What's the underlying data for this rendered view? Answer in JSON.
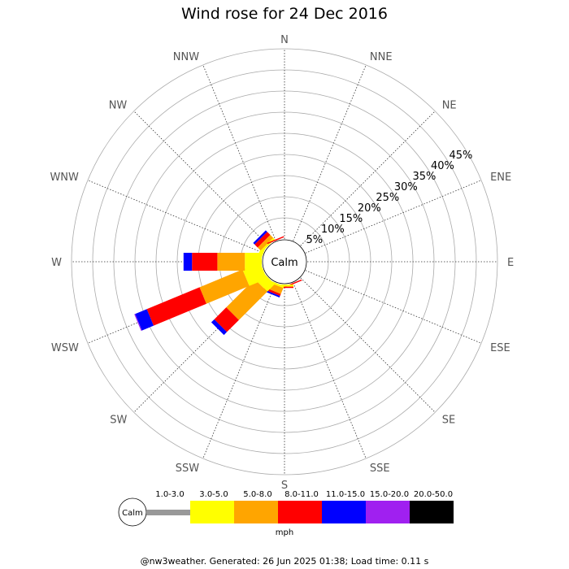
{
  "title": "Wind rose for 24 Dec 2016",
  "footer": "@nw3weather. Generated: 26 Jun 2025 01:38; Load time: 0.11 s",
  "calm_label": "Calm",
  "unit": "mph",
  "colors": {
    "calm_line": "#999999",
    "grid_ring": "#aaaaaa",
    "spoke": "#333333",
    "axis_text": "#555555"
  },
  "chart_data": {
    "type": "polar-bar",
    "title": "Wind rose for 24 Dec 2016",
    "directions": [
      "N",
      "NNE",
      "NE",
      "ENE",
      "E",
      "ESE",
      "SE",
      "SSE",
      "S",
      "SSW",
      "SW",
      "WSW",
      "W",
      "WNW",
      "NW",
      "NNW"
    ],
    "ring_labels": [
      "5%",
      "10%",
      "15%",
      "20%",
      "25%",
      "30%",
      "35%",
      "40%",
      "45%"
    ],
    "rlim": [
      0,
      45
    ],
    "speed_bins": [
      {
        "label": "1.0-3.0",
        "color": "#999999"
      },
      {
        "label": "3.0-5.0",
        "color": "#ffff00"
      },
      {
        "label": "5.0-8.0",
        "color": "#ffa500"
      },
      {
        "label": "8.0-11.0",
        "color": "#ff0000"
      },
      {
        "label": "11.0-15.0",
        "color": "#0000ff"
      },
      {
        "label": "15.0-20.0",
        "color": "#a020f0"
      },
      {
        "label": "20.0-50.0",
        "color": "#000000"
      }
    ],
    "series": [
      {
        "direction": "SSE",
        "values": [
          0,
          0,
          0,
          0.3,
          0,
          0,
          0
        ]
      },
      {
        "direction": "S",
        "values": [
          0,
          0.5,
          0,
          0.3,
          0,
          0,
          0
        ]
      },
      {
        "direction": "SSW",
        "values": [
          0,
          0.5,
          1.5,
          0.5,
          0.4,
          0,
          0
        ]
      },
      {
        "direction": "SW",
        "values": [
          0,
          2.5,
          9.5,
          4.0,
          1.0,
          0,
          0
        ]
      },
      {
        "direction": "WSW",
        "values": [
          0,
          4.5,
          11.0,
          13.5,
          3.0,
          0.2,
          0
        ]
      },
      {
        "direction": "W",
        "values": [
          0,
          4.0,
          6.5,
          6.0,
          2.0,
          0,
          0
        ]
      },
      {
        "direction": "WNW",
        "values": [
          0,
          1.0,
          0,
          0,
          0,
          0,
          0
        ]
      },
      {
        "direction": "NW",
        "values": [
          0,
          0.5,
          1.0,
          1.0,
          0.5,
          0,
          0
        ]
      },
      {
        "direction": "NNW",
        "values": [
          0,
          0,
          0,
          0.3,
          0,
          0,
          0
        ]
      }
    ]
  }
}
